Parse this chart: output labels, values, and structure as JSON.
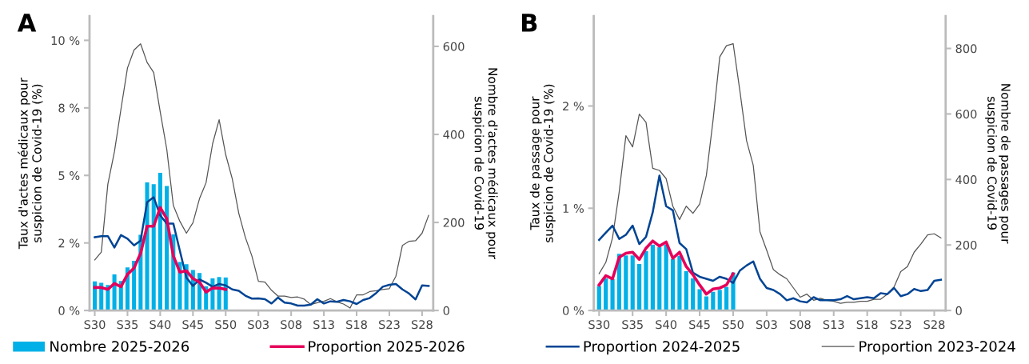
{
  "chart_data": [
    {
      "type": "bar",
      "title": "A",
      "ylabel": "Taux d'actes médicaux pour\nsuspicion de Covid-19 (%)",
      "y2label": "Nombre d'actes médicaux pour\nsuspicion de Covid-19",
      "categories": [
        "S30",
        null,
        null,
        null,
        null,
        "S35",
        null,
        null,
        null,
        null,
        "S40",
        null,
        null,
        null,
        null,
        "S45",
        null,
        null,
        null,
        null,
        "S50",
        null,
        null,
        null,
        null,
        "S03",
        null,
        null,
        null,
        null,
        "S08",
        null,
        null,
        null,
        null,
        "S13",
        null,
        null,
        null,
        null,
        "S18",
        null,
        null,
        null,
        null,
        "S23",
        null,
        null,
        null,
        null,
        "S28",
        null
      ],
      "ylim": [
        0,
        10.9
      ],
      "yticks": [
        {
          "value": 0,
          "label": "0 %"
        },
        {
          "value": 2.5,
          "label": "2 %"
        },
        {
          "value": 5,
          "label": "5 %"
        },
        {
          "value": 7.5,
          "label": "8 %"
        },
        {
          "value": 10,
          "label": "10 %"
        }
      ],
      "y2lim": [
        0,
        669
      ],
      "y2ticks": [
        0,
        200,
        400,
        600
      ],
      "grid": false,
      "legend": "bottom",
      "series": [
        {
          "name": "Nombre 2025-2026",
          "axis": "y2",
          "color": "#00b0e6",
          "values": [
            66,
            63,
            58,
            82,
            67,
            98,
            113,
            172,
            291,
            287,
            313,
            283,
            173,
            110,
            105,
            92,
            85,
            55,
            73,
            76,
            75,
            null,
            null,
            null,
            null,
            null,
            null,
            null,
            null,
            null,
            null,
            null,
            null,
            null,
            null,
            null,
            null,
            null,
            null,
            null,
            null,
            null,
            null,
            null,
            null,
            null,
            null,
            null,
            null,
            null,
            null,
            null
          ]
        },
        {
          "name": "Proportion 2025-2026",
          "type": "line",
          "color": "#e5005a",
          "values": [
            0.85,
            0.85,
            0.78,
            1.0,
            0.88,
            1.34,
            1.57,
            2.11,
            3.12,
            3.12,
            3.81,
            3.4,
            2.02,
            1.42,
            1.47,
            1.18,
            1.05,
            0.68,
            0.83,
            0.83,
            0.78,
            null,
            null,
            null,
            null,
            null,
            null,
            null,
            null,
            null,
            null,
            null,
            null,
            null,
            null,
            null,
            null,
            null,
            null,
            null,
            null,
            null,
            null,
            null,
            null,
            null,
            null,
            null,
            null,
            null,
            null,
            null
          ]
        },
        {
          "name": "Proportion 2024-2025",
          "type": "line",
          "color": "#004494",
          "values": [
            2.71,
            2.75,
            2.75,
            2.33,
            2.79,
            2.66,
            2.41,
            2.59,
            4.01,
            4.19,
            3.52,
            3.22,
            3.22,
            2.21,
            1.22,
            0.91,
            1.15,
            1.03,
            0.88,
            0.98,
            0.93,
            0.78,
            0.73,
            0.55,
            0.44,
            0.45,
            0.42,
            0.26,
            0.48,
            0.29,
            0.26,
            0.18,
            0.18,
            0.22,
            0.42,
            0.26,
            0.34,
            0.32,
            0.39,
            0.34,
            0.24,
            0.39,
            0.46,
            0.65,
            0.88,
            0.95,
            0.98,
            0.78,
            0.63,
            0.41,
            0.93,
            0.91
          ]
        },
        {
          "name": "Proportion 2023-2024",
          "type": "line",
          "color": "#555555",
          "values": [
            1.87,
            2.16,
            4.68,
            5.87,
            7.45,
            8.98,
            9.64,
            9.87,
            9.18,
            8.81,
            7.35,
            5.97,
            3.89,
            3.3,
            2.86,
            3.25,
            4.14,
            4.73,
            6.17,
            7.06,
            5.77,
            4.88,
            3.6,
            2.71,
            2.02,
            1.08,
            1.05,
            0.75,
            0.53,
            0.53,
            0.48,
            0.5,
            0.42,
            0.22,
            0.29,
            0.34,
            0.44,
            0.32,
            0.24,
            0.09,
            0.58,
            0.58,
            0.7,
            0.73,
            0.78,
            0.81,
            1.27,
            2.41,
            2.56,
            2.58,
            2.86,
            3.52
          ]
        }
      ]
    },
    {
      "type": "bar",
      "title": "B",
      "ylabel": "Taux de passage pour\nsuspicion de Covid-19 (%)",
      "y2label": "Nombre de passages pour\nsuspicion de Covid-19",
      "categories": [
        "S30",
        null,
        null,
        null,
        null,
        "S35",
        null,
        null,
        null,
        null,
        "S40",
        null,
        null,
        null,
        null,
        "S45",
        null,
        null,
        null,
        null,
        "S50",
        null,
        null,
        null,
        null,
        "S03",
        null,
        null,
        null,
        null,
        "S08",
        null,
        null,
        null,
        null,
        "S13",
        null,
        null,
        null,
        null,
        "S18",
        null,
        null,
        null,
        null,
        "S23",
        null,
        null,
        null,
        null,
        "S28",
        null
      ],
      "ylim": [
        0,
        2.88
      ],
      "yticks": [
        {
          "value": 0,
          "label": "0 %"
        },
        {
          "value": 1,
          "label": "1 %"
        },
        {
          "value": 2,
          "label": "2 %"
        }
      ],
      "y2lim": [
        0,
        899
      ],
      "y2ticks": [
        0,
        200,
        400,
        600,
        800
      ],
      "grid": false,
      "series": [
        {
          "axis": "y2",
          "color": "#00b0e6",
          "values": [
            75,
            98,
            96,
            173,
            168,
            168,
            142,
            181,
            201,
            193,
            201,
            157,
            167,
            120,
            98,
            65,
            43,
            57,
            63,
            72,
            116,
            null,
            null,
            null,
            null,
            null,
            null,
            null,
            null,
            null,
            null,
            null,
            null,
            null,
            null,
            null,
            null,
            null,
            null,
            null,
            null,
            null,
            null,
            null,
            null,
            null,
            null,
            null,
            null,
            null,
            null,
            null
          ]
        },
        {
          "type": "line",
          "color": "#e5005a",
          "values": [
            0.25,
            0.34,
            0.31,
            0.52,
            0.56,
            0.57,
            0.5,
            0.61,
            0.68,
            0.63,
            0.67,
            0.51,
            0.57,
            0.43,
            0.35,
            0.25,
            0.16,
            0.21,
            0.22,
            0.25,
            0.36,
            null,
            null,
            null,
            null,
            null,
            null,
            null,
            null,
            null,
            null,
            null,
            null,
            null,
            null,
            null,
            null,
            null,
            null,
            null,
            null,
            null,
            null,
            null,
            null,
            null,
            null,
            null,
            null,
            null,
            null,
            null
          ]
        },
        {
          "type": "line",
          "color": "#004494",
          "values": [
            0.69,
            0.76,
            0.83,
            0.7,
            0.74,
            0.83,
            0.65,
            0.72,
            0.96,
            1.32,
            1.02,
            0.98,
            0.66,
            0.6,
            0.37,
            0.33,
            0.31,
            0.29,
            0.33,
            0.31,
            0.27,
            0.39,
            0.44,
            0.48,
            0.31,
            0.22,
            0.2,
            0.16,
            0.1,
            0.12,
            0.09,
            0.08,
            0.13,
            0.1,
            0.1,
            0.1,
            0.11,
            0.14,
            0.11,
            0.12,
            0.13,
            0.12,
            0.17,
            0.16,
            0.22,
            0.14,
            0.16,
            0.21,
            0.19,
            0.2,
            0.29,
            0.3
          ]
        },
        {
          "type": "line",
          "color": "#555555",
          "values": [
            0.36,
            0.47,
            0.71,
            1.16,
            1.71,
            1.6,
            1.92,
            1.84,
            1.39,
            1.37,
            1.29,
            1.02,
            0.89,
            1.02,
            0.95,
            1.04,
            1.32,
            1.86,
            2.48,
            2.59,
            2.61,
            2.15,
            1.66,
            1.42,
            0.77,
            0.59,
            0.4,
            0.35,
            0.31,
            0.22,
            0.13,
            0.16,
            0.1,
            0.12,
            0.1,
            0.09,
            0.07,
            0.08,
            0.08,
            0.09,
            0.09,
            0.11,
            0.11,
            0.16,
            0.23,
            0.38,
            0.43,
            0.57,
            0.65,
            0.74,
            0.75,
            0.71
          ]
        }
      ]
    }
  ]
}
